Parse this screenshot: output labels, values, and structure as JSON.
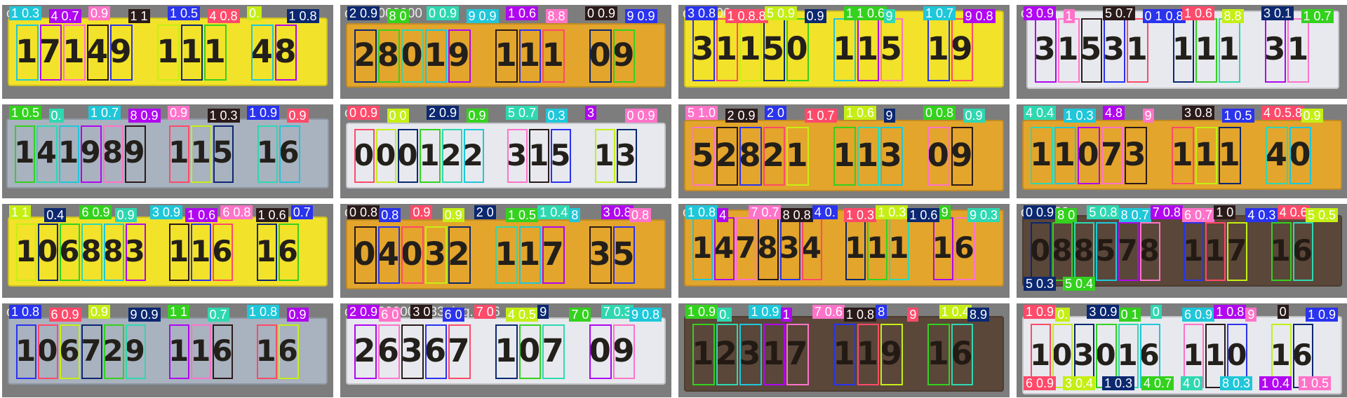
{
  "colors": [
    "#1fc7d9",
    "#0b2870",
    "#2a33ee",
    "#b007f0",
    "#34d11f",
    "#ff4a6a",
    "#ff73c9",
    "#2fd8b1",
    "#c5ef14",
    "#2b1a1a"
  ],
  "plate_colors": {
    "yellow": "#f2e22a",
    "orange": "#e3a52c",
    "white": "#e7e9ee",
    "gray": "#a9b2bf",
    "dark": "#5a473a"
  },
  "tiles": [
    {
      "caption": "ocr_",
      "plate": "yellow",
      "text": "17149 111 48",
      "tags": [
        "1 0.3",
        "4 0.7",
        "0.9",
        "1 1",
        "1 0.5",
        "4 0.8",
        "0.",
        "1 0.8"
      ]
    },
    {
      "caption": "ocr_0000000",
      "plate": "orange",
      "text": "28019 111 09",
      "tags": [
        "2 0.9",
        "8 0",
        "0 0.9",
        "9 0.9",
        "1 0.6",
        "8.8",
        "0 0.9",
        "9 0.9"
      ]
    },
    {
      "caption": "ocr_000",
      "plate": "yellow",
      "text": "31150 115 19",
      "tags": [
        "3 0.8",
        "1 0.8.8",
        "5 0.9",
        "0.9",
        "1 1 0.6",
        "9",
        "1 0.7",
        "9 0.8"
      ]
    },
    {
      "caption": "ocr",
      "plate": "white",
      "text": "31531 111 31",
      "tags": [
        "3 0.9",
        "1",
        "5 0.7",
        "0 1 0.8",
        "1 0.6",
        "8.8",
        "3 0.1",
        "1 0.7"
      ]
    },
    {
      "caption": "",
      "plate": "gray",
      "text": "141989 115 16",
      "tags": [
        "1 0.5",
        "0.",
        "1 0.7",
        "8 0.9",
        "0.9",
        "1 0.3",
        "1 0.9",
        "0.9"
      ]
    },
    {
      "caption": "ocr",
      "plate": "white",
      "text": "000122 315 13",
      "tags": [
        "0 0.9",
        "0 0",
        "2 0.9",
        "0.9",
        "5 0.7",
        "0.3",
        "3",
        "0 0.9"
      ]
    },
    {
      "caption": "",
      "plate": "orange",
      "text": "52821 113 09",
      "tags": [
        "5 1.0",
        "2 0.9",
        "2 0",
        "1 0.7",
        "1 0.6",
        "9",
        "0 0.8",
        "0.9"
      ]
    },
    {
      "caption": "",
      "plate": "orange",
      "text": "11073 111 40",
      "tags": [
        "4 0.4",
        "1 0.3",
        "4.8",
        "9",
        "3 0.8",
        "1 0.5",
        "4 0.5.8",
        "0.9"
      ]
    },
    {
      "caption": "",
      "plate": "yellow",
      "text": "106883 116 16",
      "tags": [
        "1 1",
        "0.4",
        "6 0.9",
        "0.9",
        "3 0.9",
        "1 0.6",
        "6 0.8",
        "1 0.6",
        "0.7"
      ]
    },
    {
      "caption": "ocr_",
      "plate": "orange",
      "text": "04032 117 35",
      "tags": [
        "0 0.8",
        "0.8",
        "0.9",
        "0.9",
        "2 0",
        "1 0.5",
        "1 0.4",
        "8",
        "3 0.8",
        "0.8"
      ]
    },
    {
      "caption": "ocr",
      "plate": "orange",
      "text": "147834 111 16",
      "tags": [
        "1 0.8",
        "4",
        "7 0.7",
        "8 0.8",
        "4 0.",
        "1 0.3",
        "1 0.3",
        "1 0.6",
        "9",
        "9 0.3"
      ]
    },
    {
      "caption": "ocr_000",
      "plate": "dark",
      "text": "088578 117 16",
      "tags": [
        "0 0.9",
        "8 0",
        "5 0.8",
        "8 0.7",
        "7 0.8",
        "6 0.7",
        "1 0",
        "4 0.3",
        "4 0.6",
        "5 0.5",
        "5 0.3",
        "5 0.4"
      ]
    },
    {
      "caption": "oc",
      "plate": "gray",
      "text": "106729 116 16",
      "tags": [
        "1 0.8",
        "6 0.9",
        "0.9",
        "9 0.9",
        "1 1",
        "0.7",
        "1 0.8",
        "0.9"
      ]
    },
    {
      "caption": "ocr_0000000233_jpg.rf.d6",
      "plate": "white",
      "text": "26367 107 09",
      "tags": [
        "2 0.9",
        "6 0",
        "3 0",
        "6 0",
        "7 0",
        "4 0.5",
        "9",
        "7 0",
        "7 0.3",
        "9 0.8"
      ]
    },
    {
      "caption": "",
      "plate": "dark",
      "text": "12317 119 16",
      "tags": [
        "1 0.9",
        "0.",
        "1 0.9",
        "1",
        "7 0.6",
        "1 0.8",
        "8",
        "9",
        "1 0.4",
        "8.9"
      ]
    },
    {
      "caption": "",
      "plate": "white",
      "text": "103016 110 16",
      "tags": [
        "1 0.9",
        "0.",
        "3 0.9",
        "0 1",
        "0",
        "6 0.9",
        "1 0.8",
        "9",
        "0",
        "1 0.9",
        "6 0.9",
        "3 0.4",
        "1 0.3",
        "4 0.7",
        "4 0",
        "8 0.3",
        "1 0.4",
        "1 0.5"
      ]
    }
  ]
}
